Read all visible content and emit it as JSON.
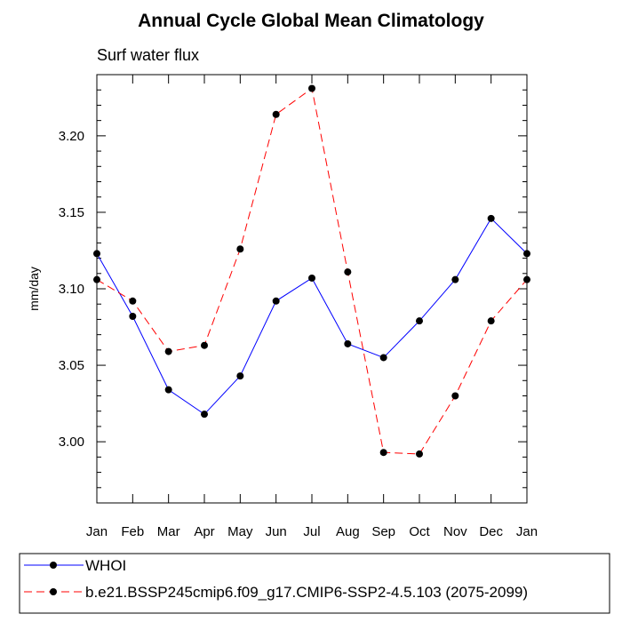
{
  "chart_data": {
    "type": "line",
    "title": "Annual Cycle Global Mean Climatology",
    "subtitle": "Surf water flux",
    "xlabel": "",
    "ylabel": "mm/day",
    "categories": [
      "Jan",
      "Feb",
      "Mar",
      "Apr",
      "May",
      "Jun",
      "Jul",
      "Aug",
      "Sep",
      "Oct",
      "Nov",
      "Dec",
      "Jan"
    ],
    "ylim": [
      2.96,
      3.24
    ],
    "yticks": [
      "3.00",
      "3.05",
      "3.10",
      "3.15",
      "3.20"
    ],
    "ytick_values": [
      3.0,
      3.05,
      3.1,
      3.15,
      3.2
    ],
    "grid": false,
    "legend_position": "bottom",
    "series": [
      {
        "name": "WHOI",
        "color": "#0000ff",
        "dash": "solid",
        "values": [
          3.123,
          3.082,
          3.034,
          3.018,
          3.043,
          3.092,
          3.107,
          3.064,
          3.055,
          3.079,
          3.106,
          3.146,
          3.123
        ]
      },
      {
        "name": "b.e21.BSSP245cmip6.f09_g17.CMIP6-SSP2-4.5.103 (2075-2099)",
        "color": "#ff0000",
        "dash": "dashed",
        "values": [
          3.106,
          3.092,
          3.059,
          3.063,
          3.126,
          3.214,
          3.231,
          3.111,
          2.993,
          2.992,
          3.03,
          3.079,
          3.106
        ]
      }
    ]
  }
}
